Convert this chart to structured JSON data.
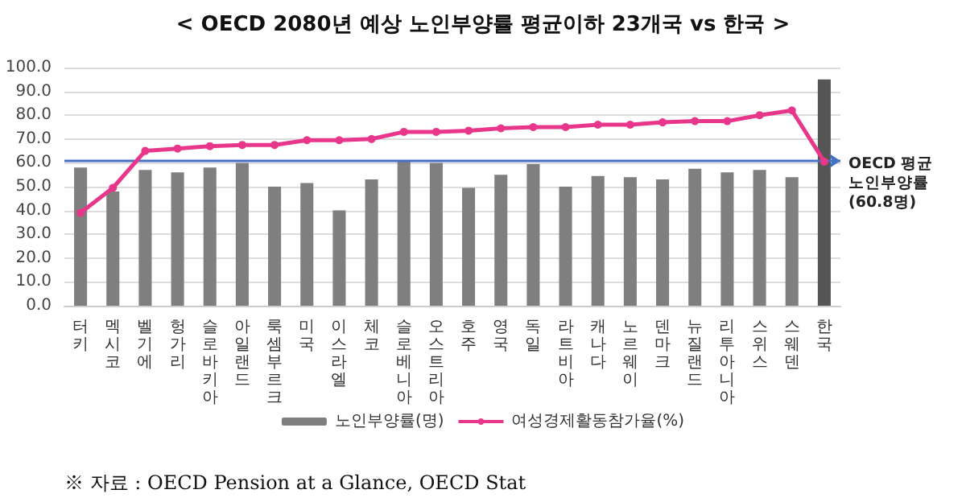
{
  "chart_data": {
    "type": "bar",
    "title": "< OECD 2080년 예상 노인부양률 평균이하 23개국 vs 한국 >",
    "categories": [
      "터키",
      "멕시코",
      "벨기에",
      "헝가리",
      "슬로바키아",
      "아일랜드",
      "룩셈부르크",
      "미국",
      "이스라엘",
      "체코",
      "슬로베니아",
      "오스트리아",
      "호주",
      "영국",
      "독일",
      "라트비아",
      "캐나다",
      "노르웨이",
      "덴마크",
      "뉴질랜드",
      "리투아니아",
      "스위스",
      "스웨덴",
      "한국"
    ],
    "series": [
      {
        "name": "노인부양률(명)",
        "color": "#7f7f7f",
        "colors": [
          "#7f7f7f",
          "#7f7f7f",
          "#7f7f7f",
          "#7f7f7f",
          "#7f7f7f",
          "#7f7f7f",
          "#7f7f7f",
          "#7f7f7f",
          "#7f7f7f",
          "#7f7f7f",
          "#7f7f7f",
          "#7f7f7f",
          "#7f7f7f",
          "#7f7f7f",
          "#7f7f7f",
          "#7f7f7f",
          "#7f7f7f",
          "#7f7f7f",
          "#7f7f7f",
          "#7f7f7f",
          "#7f7f7f",
          "#7f7f7f",
          "#7f7f7f",
          "#555555"
        ],
        "values": [
          58,
          48,
          57,
          56,
          58,
          60,
          50,
          51.5,
          40,
          53,
          61,
          60,
          49.5,
          55,
          59.5,
          50,
          54.5,
          54,
          53,
          57.5,
          56,
          57,
          54,
          95
        ]
      },
      {
        "name": "여성경제활동참가율(%)",
        "type": "line",
        "color": "#e8368a",
        "marker": "circle",
        "values": [
          39,
          49.5,
          65,
          66,
          67,
          67.5,
          67.5,
          69.5,
          69.5,
          70,
          73,
          73,
          73.5,
          74.5,
          75,
          75,
          76,
          76,
          77,
          77.5,
          77.5,
          80,
          82,
          60.5
        ]
      }
    ],
    "ylim": [
      0,
      100
    ],
    "yticks": [
      {
        "value": 0,
        "label": "0.0"
      },
      {
        "value": 10,
        "label": "10.0"
      },
      {
        "value": 20,
        "label": "20.0"
      },
      {
        "value": 30,
        "label": "30.0"
      },
      {
        "value": 40,
        "label": "40.0"
      },
      {
        "value": 50,
        "label": "50.0"
      },
      {
        "value": 60,
        "label": "60.0"
      },
      {
        "value": 70,
        "label": "70.0"
      },
      {
        "value": 80,
        "label": "80.0"
      },
      {
        "value": 90,
        "label": "90.0"
      },
      {
        "value": 100,
        "label": "100.0"
      }
    ],
    "grid": "y",
    "legend": "bottom",
    "ref_lines": [
      {
        "axis": "y",
        "value": 60.8,
        "label": "OECD 평균\n노인부양률\n(60.8명)",
        "color": "#4472c4",
        "line_style": "solid"
      }
    ],
    "annotations": [
      "※ 자료 : OECD Pension at a Glance, OECD Stat"
    ]
  }
}
